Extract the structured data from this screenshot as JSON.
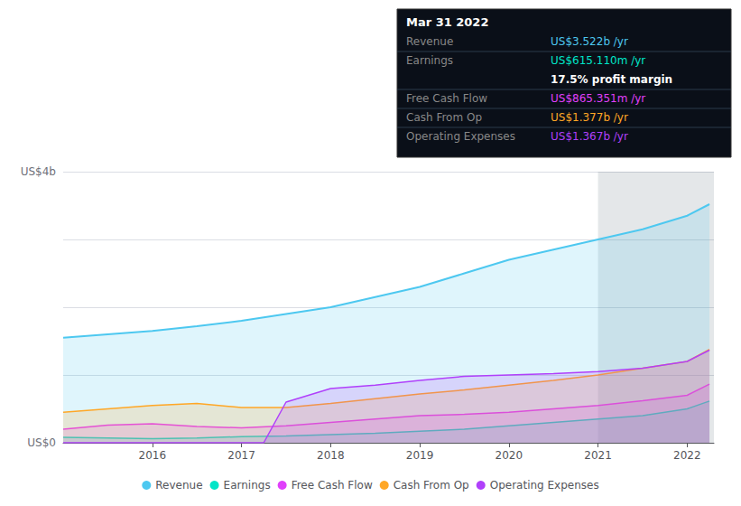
{
  "chart_data": {
    "type": "line",
    "xlim": [
      2015.0,
      2022.3
    ],
    "xticks": [
      2016,
      2017,
      2018,
      2019,
      2020,
      2021,
      2022
    ],
    "ylim": [
      0.0,
      4.0
    ],
    "yticks": [
      0,
      1,
      2,
      3,
      4
    ],
    "grid": true,
    "tick_labels": "x",
    "legend": "bottom",
    "annotations": {
      "top": "US$4b",
      "bottom": "US$0"
    },
    "highlight_x": [
      2021.0,
      2022.3
    ],
    "series": [
      {
        "name": "Revenue",
        "color": "#4dc8f0",
        "x": [
          2015.0,
          2015.5,
          2016.0,
          2016.5,
          2017.0,
          2017.5,
          2018.0,
          2018.5,
          2019.0,
          2019.5,
          2020.0,
          2020.5,
          2021.0,
          2021.5,
          2022.0,
          2022.25
        ],
        "values": [
          1.55,
          1.6,
          1.65,
          1.72,
          1.8,
          1.9,
          2.0,
          2.15,
          2.3,
          2.5,
          2.7,
          2.85,
          3.0,
          3.15,
          3.35,
          3.52
        ]
      },
      {
        "name": "Earnings",
        "color": "#00e5c8",
        "x": [
          2015.0,
          2015.5,
          2016.0,
          2016.5,
          2017.0,
          2017.5,
          2018.0,
          2018.5,
          2019.0,
          2019.5,
          2020.0,
          2020.5,
          2021.0,
          2021.5,
          2022.0,
          2022.25
        ],
        "values": [
          0.08,
          0.07,
          0.06,
          0.07,
          0.09,
          0.1,
          0.12,
          0.14,
          0.17,
          0.2,
          0.25,
          0.3,
          0.35,
          0.4,
          0.5,
          0.615
        ]
      },
      {
        "name": "Free Cash Flow",
        "color": "#e040fb",
        "x": [
          2015.0,
          2015.5,
          2016.0,
          2016.5,
          2017.0,
          2017.5,
          2018.0,
          2018.5,
          2019.0,
          2019.5,
          2020.0,
          2020.5,
          2021.0,
          2021.5,
          2022.0,
          2022.25
        ],
        "values": [
          0.2,
          0.26,
          0.28,
          0.24,
          0.22,
          0.25,
          0.3,
          0.35,
          0.4,
          0.42,
          0.45,
          0.5,
          0.55,
          0.62,
          0.7,
          0.865
        ]
      },
      {
        "name": "Cash From Op",
        "color": "#ffa726",
        "x": [
          2015.0,
          2015.5,
          2016.0,
          2016.5,
          2017.0,
          2017.5,
          2018.0,
          2018.5,
          2019.0,
          2019.5,
          2020.0,
          2020.5,
          2021.0,
          2021.5,
          2022.0,
          2022.25
        ],
        "values": [
          0.45,
          0.5,
          0.55,
          0.58,
          0.52,
          0.52,
          0.58,
          0.65,
          0.72,
          0.78,
          0.85,
          0.92,
          1.0,
          1.1,
          1.2,
          1.377
        ]
      },
      {
        "name": "Operating Expenses",
        "color": "#b040fb",
        "x": [
          2015.0,
          2015.5,
          2016.0,
          2016.5,
          2017.0,
          2017.25,
          2017.5,
          2018.0,
          2018.5,
          2019.0,
          2019.5,
          2020.0,
          2020.5,
          2021.0,
          2021.5,
          2022.0,
          2022.25
        ],
        "values": [
          0.0,
          0.0,
          0.0,
          0.0,
          0.0,
          0.0,
          0.6,
          0.8,
          0.85,
          0.92,
          0.98,
          1.0,
          1.02,
          1.05,
          1.1,
          1.2,
          1.367
        ]
      }
    ],
    "info_box": {
      "title": "Mar 31 2022",
      "rows": [
        {
          "label": "Revenue",
          "value": "US$3.522b /yr",
          "color": "#4dc8f0"
        },
        {
          "label": "Earnings",
          "value": "US$615.110m /yr",
          "color": "#00e5c8"
        },
        {
          "value": "17.5% profit margin",
          "color": "#ffffff"
        },
        {
          "label": "Free Cash Flow",
          "value": "US$865.351m /yr",
          "color": "#e040fb"
        },
        {
          "label": "Cash From Op",
          "value": "US$1.377b /yr",
          "color": "#ffa726"
        },
        {
          "label": "Operating Expenses",
          "value": "US$1.367b /yr",
          "color": "#b040fb"
        }
      ]
    }
  }
}
